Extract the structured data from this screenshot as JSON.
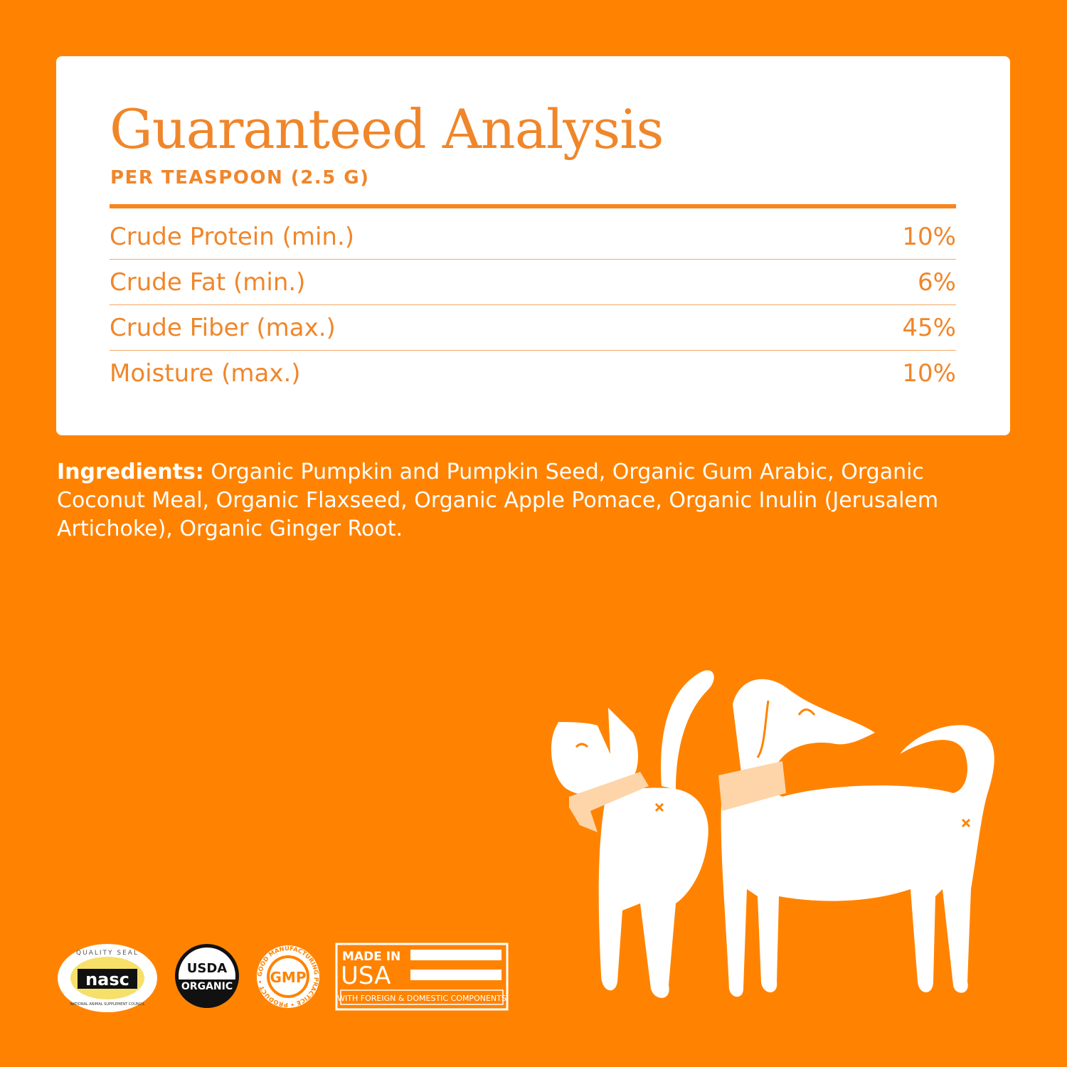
{
  "card": {
    "title": "Guaranteed Analysis",
    "subtitle": "PER TEASPOON (2.5 G)",
    "rows": [
      {
        "label": "Crude Protein (min.)",
        "value": "10%"
      },
      {
        "label": "Crude Fat (min.)",
        "value": "6%"
      },
      {
        "label": "Crude Fiber (max.)",
        "value": "45%"
      },
      {
        "label": "Moisture (max.)",
        "value": "10%"
      }
    ]
  },
  "ingredients": {
    "label": "Ingredients:",
    "text": " Organic Pumpkin and Pumpkin Seed, Organic Gum Arabic, Organic Coconut Meal, Organic Flaxseed, Organic Apple Pomace, Organic Inulin (Jerusalem Artichoke), Organic Ginger Root."
  },
  "badges": {
    "nasc": {
      "top": "QUALITY SEAL",
      "main": "nasc",
      "bottom": "NATIONAL ANIMAL SUPPLEMENT COUNCIL"
    },
    "usda": {
      "top": "USDA",
      "bottom": "ORGANIC"
    },
    "gmp": {
      "ring": "GOOD MANUFACTURING PRACTICE • PRODUCT •",
      "main": "GMP"
    },
    "usa": {
      "line1": "MADE IN",
      "line2": "USA",
      "line3": "WITH FOREIGN & DOMESTIC COMPONENTS"
    }
  },
  "colors": {
    "background": "#ff8300",
    "accent": "#f0862a",
    "scarf": "#fdd5a8"
  },
  "illustration": {
    "icons": [
      "cat-illustration",
      "dog-illustration"
    ]
  }
}
